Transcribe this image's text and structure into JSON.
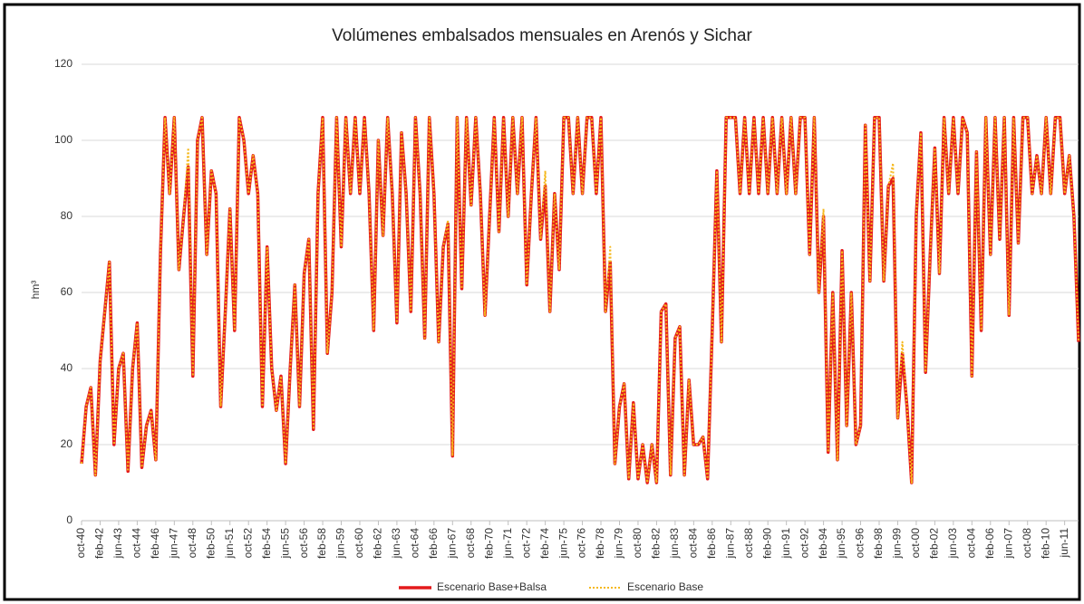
{
  "chart_data": {
    "type": "line",
    "title": "Volúmenes embalsados mensuales en Arenós y Sichar",
    "y_label": "hm³",
    "ylim": [
      0,
      120
    ],
    "yticks": [
      0,
      20,
      40,
      60,
      80,
      100,
      120
    ],
    "grid": true,
    "legend": "bottom",
    "categories": [
      "oct-40",
      null,
      null,
      null,
      "feb-42",
      null,
      null,
      null,
      "jun-43",
      null,
      null,
      null,
      "oct-44",
      null,
      null,
      null,
      "feb-46",
      null,
      null,
      null,
      "jun-47",
      null,
      null,
      null,
      "oct-48",
      null,
      null,
      null,
      "feb-50",
      null,
      null,
      null,
      "jun-51",
      null,
      null,
      null,
      "oct-52",
      null,
      null,
      null,
      "feb-54",
      null,
      null,
      null,
      "jun-55",
      null,
      null,
      null,
      "oct-56",
      null,
      null,
      null,
      "feb-58",
      null,
      null,
      null,
      "jun-59",
      null,
      null,
      null,
      "oct-60",
      null,
      null,
      null,
      "feb-62",
      null,
      null,
      null,
      "jun-63",
      null,
      null,
      null,
      "oct-64",
      null,
      null,
      null,
      "feb-66",
      null,
      null,
      null,
      "jun-67",
      null,
      null,
      null,
      "oct-68",
      null,
      null,
      null,
      "feb-70",
      null,
      null,
      null,
      "jun-71",
      null,
      null,
      null,
      "oct-72",
      null,
      null,
      null,
      "feb-74",
      null,
      null,
      null,
      "jun-75",
      null,
      null,
      null,
      "oct-76",
      null,
      null,
      null,
      "feb-78",
      null,
      null,
      null,
      "jun-79",
      null,
      null,
      null,
      "oct-80",
      null,
      null,
      null,
      "feb-82",
      null,
      null,
      null,
      "jun-83",
      null,
      null,
      null,
      "oct-84",
      null,
      null,
      null,
      "feb-86",
      null,
      null,
      null,
      "jun-87",
      null,
      null,
      null,
      "oct-88",
      null,
      null,
      null,
      "feb-90",
      null,
      null,
      null,
      "jun-91",
      null,
      null,
      null,
      "oct-92",
      null,
      null,
      null,
      "feb-94",
      null,
      null,
      null,
      "jun-95",
      null,
      null,
      null,
      "oct-96",
      null,
      null,
      null,
      "feb-98",
      null,
      null,
      null,
      "jun-99",
      null,
      null,
      null,
      "oct-00",
      null,
      null,
      null,
      "feb-02",
      null,
      null,
      null,
      "jun-03",
      null,
      null,
      null,
      "oct-04",
      null,
      null,
      null,
      "feb-06",
      null,
      null,
      null,
      "jun-07",
      null,
      null,
      null,
      "oct-08",
      null,
      null,
      null,
      "feb-10",
      null,
      null,
      null,
      "jun-11",
      null,
      null,
      null
    ],
    "series": [
      {
        "name": "Escenario Base+Balsa",
        "color": "#e41a1c",
        "values": [
          15,
          30,
          35,
          12,
          42,
          55,
          68,
          20,
          40,
          44,
          13,
          40,
          52,
          14,
          25,
          29,
          16,
          70,
          106,
          86,
          106,
          66,
          80,
          93,
          38,
          100,
          106,
          70,
          92,
          86,
          30,
          55,
          82,
          50,
          106,
          100,
          86,
          96,
          86,
          30,
          72,
          40,
          29,
          38,
          15,
          40,
          62,
          30,
          65,
          74,
          24,
          86,
          106,
          44,
          60,
          106,
          72,
          106,
          86,
          106,
          86,
          106,
          86,
          50,
          100,
          75,
          106,
          86,
          52,
          102,
          86,
          55,
          106,
          86,
          48,
          106,
          86,
          47,
          72,
          78,
          17,
          106,
          61,
          106,
          83,
          106,
          86,
          54,
          80,
          106,
          76,
          106,
          80,
          106,
          86,
          106,
          62,
          86,
          106,
          74,
          88,
          55,
          86,
          66,
          106,
          106,
          86,
          106,
          86,
          106,
          106,
          86,
          106,
          55,
          68,
          15,
          30,
          36,
          11,
          31,
          11,
          20,
          10,
          20,
          10,
          55,
          57,
          12,
          48,
          51,
          12,
          37,
          20,
          20,
          22,
          11,
          50,
          92,
          47,
          106,
          106,
          106,
          86,
          106,
          86,
          106,
          86,
          106,
          86,
          106,
          86,
          106,
          86,
          106,
          86,
          106,
          106,
          70,
          106,
          60,
          80,
          18,
          60,
          16,
          71,
          25,
          60,
          20,
          25,
          104,
          63,
          106,
          106,
          63,
          88,
          90,
          27,
          44,
          30,
          10,
          80,
          102,
          39,
          70,
          98,
          65,
          106,
          86,
          106,
          86,
          106,
          102,
          38,
          97,
          50,
          106,
          70,
          106,
          74,
          106,
          54,
          106,
          73,
          106,
          106,
          86,
          96,
          86,
          106,
          86,
          106,
          106,
          86,
          96,
          80,
          47
        ]
      },
      {
        "name": "Escenario Base",
        "color": "#f5b81c",
        "values": [
          15,
          30,
          35,
          12,
          42,
          55,
          68,
          20,
          40,
          44,
          13,
          40,
          52,
          14,
          25,
          29,
          16,
          70,
          106,
          86,
          106,
          66,
          80,
          98,
          38,
          100,
          106,
          70,
          92,
          86,
          30,
          55,
          82,
          50,
          106,
          100,
          86,
          96,
          86,
          30,
          72,
          40,
          29,
          38,
          15,
          40,
          62,
          30,
          65,
          74,
          24,
          86,
          106,
          44,
          60,
          106,
          72,
          106,
          86,
          106,
          86,
          106,
          86,
          50,
          100,
          75,
          106,
          86,
          52,
          102,
          86,
          55,
          106,
          86,
          48,
          106,
          86,
          47,
          72,
          79,
          17,
          106,
          61,
          106,
          83,
          106,
          86,
          54,
          80,
          106,
          76,
          106,
          80,
          106,
          86,
          106,
          62,
          86,
          106,
          74,
          92,
          55,
          86,
          66,
          106,
          106,
          86,
          106,
          86,
          106,
          106,
          86,
          106,
          55,
          72,
          15,
          30,
          36,
          11,
          31,
          11,
          20,
          10,
          20,
          10,
          55,
          57,
          12,
          48,
          51,
          12,
          37,
          20,
          20,
          22,
          11,
          50,
          92,
          47,
          106,
          106,
          106,
          86,
          106,
          86,
          106,
          86,
          106,
          86,
          106,
          86,
          106,
          86,
          106,
          86,
          106,
          106,
          70,
          106,
          60,
          82,
          18,
          60,
          16,
          71,
          25,
          60,
          20,
          25,
          104,
          63,
          106,
          106,
          63,
          88,
          94,
          27,
          47,
          30,
          10,
          80,
          102,
          39,
          70,
          98,
          65,
          106,
          86,
          106,
          86,
          106,
          102,
          38,
          97,
          50,
          106,
          70,
          106,
          74,
          106,
          54,
          106,
          73,
          106,
          106,
          86,
          96,
          86,
          106,
          86,
          106,
          106,
          86,
          96,
          80,
          47
        ]
      }
    ]
  }
}
